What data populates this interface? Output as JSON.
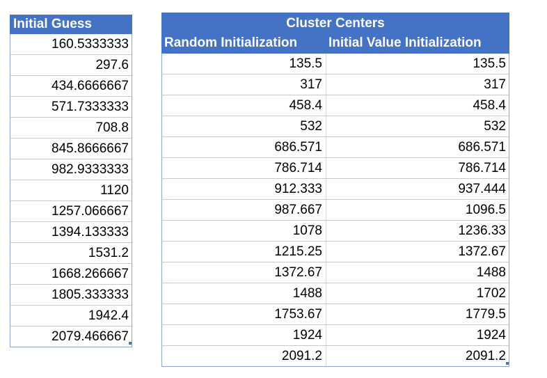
{
  "initial_guess": {
    "header": "Initial Guess",
    "values": [
      "160.5333333",
      "297.6",
      "434.6666667",
      "571.7333333",
      "708.8",
      "845.8666667",
      "982.9333333",
      "1120",
      "1257.066667",
      "1394.133333",
      "1531.2",
      "1668.266667",
      "1805.333333",
      "1942.4",
      "2079.466667"
    ]
  },
  "cluster_centers": {
    "title": "Cluster Centers",
    "columns": [
      "Random Initialization",
      "Initial Value Initialization"
    ],
    "rows": [
      [
        "135.5",
        "135.5"
      ],
      [
        "317",
        "317"
      ],
      [
        "458.4",
        "458.4"
      ],
      [
        "532",
        "532"
      ],
      [
        "686.571",
        "686.571"
      ],
      [
        "786.714",
        "786.714"
      ],
      [
        "912.333",
        "937.444"
      ],
      [
        "987.667",
        "1096.5"
      ],
      [
        "1078",
        "1236.33"
      ],
      [
        "1215.25",
        "1372.67"
      ],
      [
        "1372.67",
        "1488"
      ],
      [
        "1488",
        "1702"
      ],
      [
        "1753.67",
        "1779.5"
      ],
      [
        "1924",
        "1924"
      ],
      [
        "2091.2",
        "2091.2"
      ]
    ]
  },
  "colors": {
    "header_bg": "#4472c4",
    "header_text": "#ffffff"
  }
}
